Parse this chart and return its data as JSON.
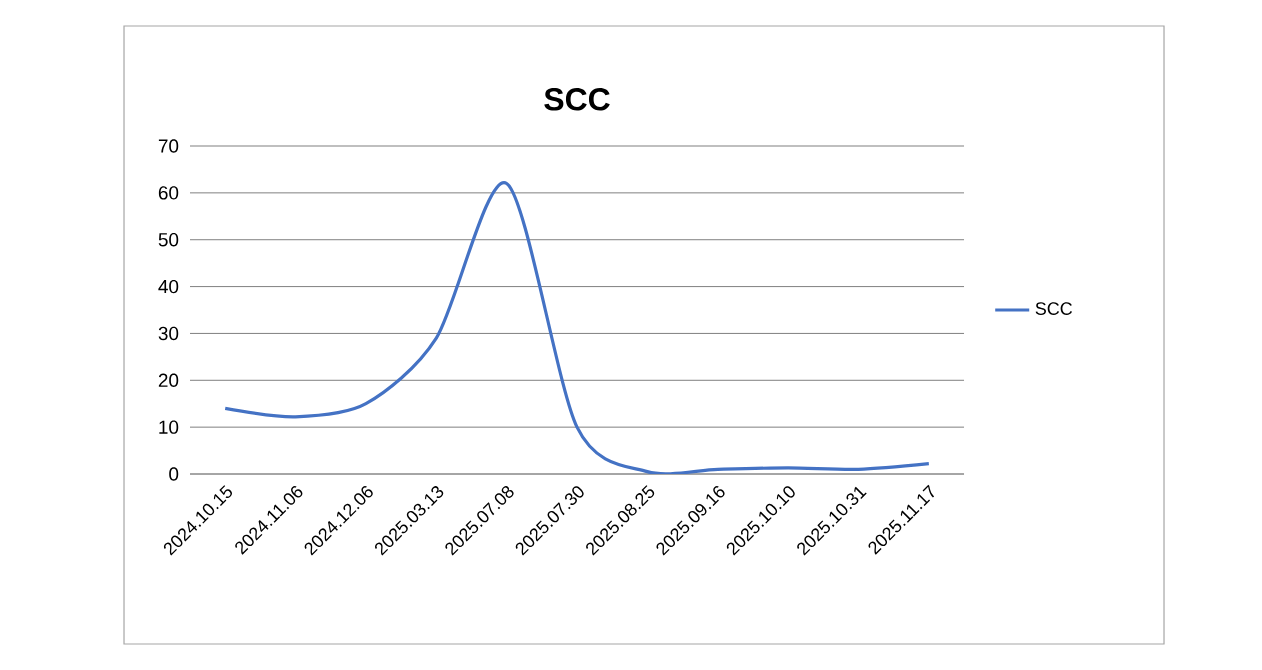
{
  "chart_data": {
    "type": "line",
    "title": "SCC",
    "categories": [
      "2024.10.15",
      "2024.11.06",
      "2024.12.06",
      "2025.03.13",
      "2025.07.08",
      "2025.07.30",
      "2025.08.25",
      "2025.09.16",
      "2025.10.10",
      "2025.10.31",
      "2025.11.17"
    ],
    "series": [
      {
        "name": "SCC",
        "color": "#4472c4",
        "values": [
          14,
          12.2,
          15,
          29,
          62,
          10,
          0.5,
          1,
          1.3,
          1,
          2.2
        ]
      }
    ],
    "ylim": [
      0,
      70
    ],
    "yticks": [
      0,
      10,
      20,
      30,
      40,
      50,
      60,
      70
    ],
    "grid": "y",
    "legend": "right",
    "marker": "none",
    "line_style": "solid"
  }
}
